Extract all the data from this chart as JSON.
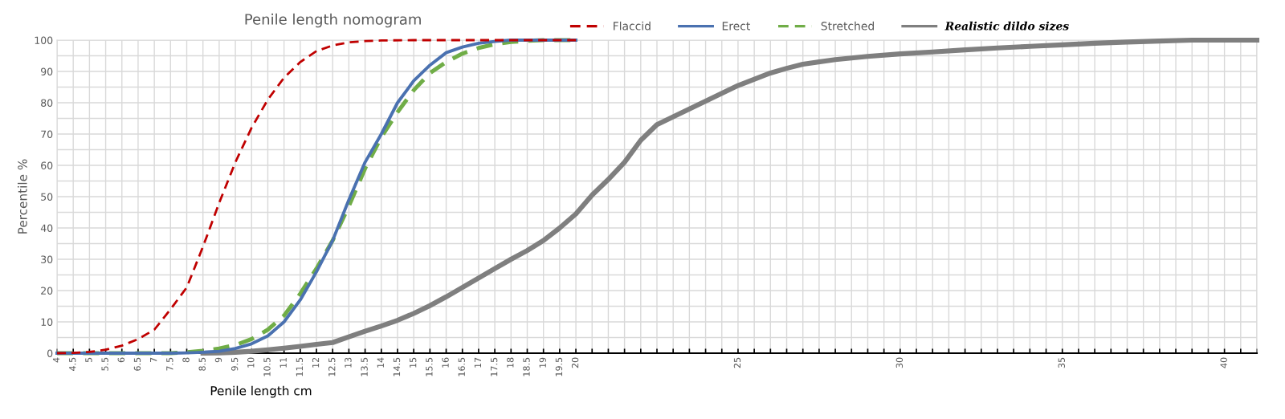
{
  "chart_data": {
    "type": "line",
    "title": "Penile length nomogram",
    "xlabel": "Penile length cm",
    "ylabel": "Percentile %",
    "xlim": [
      4,
      41
    ],
    "ylim": [
      0,
      100
    ],
    "xticks": [
      4,
      4.5,
      5,
      5.5,
      6,
      6.5,
      7,
      7.5,
      8,
      8.5,
      9,
      9.5,
      10,
      10.5,
      11,
      11.5,
      12,
      12.5,
      13,
      13.5,
      14,
      14.5,
      15,
      15.5,
      16,
      16.5,
      17,
      17.5,
      18,
      18.5,
      19,
      19.5,
      20,
      {
        "value": 20.5,
        "label": null
      },
      {
        "value": 21,
        "label": null
      },
      {
        "value": 21.5,
        "label": null
      },
      {
        "value": 22,
        "label": null
      },
      {
        "value": 22.5,
        "label": null
      },
      {
        "value": 23,
        "label": null
      },
      {
        "value": 23.5,
        "label": null
      },
      {
        "value": 24,
        "label": null
      },
      {
        "value": 24.5,
        "label": null
      },
      25,
      {
        "value": 25.5,
        "label": null
      },
      {
        "value": 26,
        "label": null
      },
      {
        "value": 26.5,
        "label": null
      },
      {
        "value": 27,
        "label": null
      },
      {
        "value": 27.5,
        "label": null
      },
      {
        "value": 28,
        "label": null
      },
      {
        "value": 28.5,
        "label": null
      },
      {
        "value": 29,
        "label": null
      },
      {
        "value": 29.5,
        "label": null
      },
      30,
      {
        "value": 30.5,
        "label": null
      },
      {
        "value": 31,
        "label": null
      },
      {
        "value": 31.5,
        "label": null
      },
      {
        "value": 32,
        "label": null
      },
      {
        "value": 32.5,
        "label": null
      },
      {
        "value": 33,
        "label": null
      },
      {
        "value": 33.5,
        "label": null
      },
      {
        "value": 34,
        "label": null
      },
      {
        "value": 34.5,
        "label": null
      },
      35,
      {
        "value": 35.5,
        "label": null
      },
      {
        "value": 36,
        "label": null
      },
      {
        "value": 36.5,
        "label": null
      },
      {
        "value": 37,
        "label": null
      },
      {
        "value": 37.5,
        "label": null
      },
      {
        "value": 38,
        "label": null
      },
      {
        "value": 38.5,
        "label": null
      },
      {
        "value": 39,
        "label": null
      },
      {
        "value": 39.5,
        "label": null
      },
      40,
      {
        "value": 40.5,
        "label": null
      },
      {
        "value": 41,
        "label": null
      }
    ],
    "yticks": [
      0,
      {
        "value": 5,
        "label": null
      },
      10,
      {
        "value": 15,
        "label": null
      },
      20,
      {
        "value": 25,
        "label": null
      },
      30,
      {
        "value": 35,
        "label": null
      },
      40,
      {
        "value": 45,
        "label": null
      },
      50,
      {
        "value": 55,
        "label": null
      },
      60,
      {
        "value": 65,
        "label": null
      },
      70,
      {
        "value": 75,
        "label": null
      },
      80,
      {
        "value": 85,
        "label": null
      },
      90,
      {
        "value": 95,
        "label": null
      },
      100
    ],
    "grid": true,
    "legend": "top right",
    "marker": "none",
    "series": [
      {
        "name": "Flaccid",
        "color": "#c00000",
        "line_style": "dashed",
        "x": [
          4,
          4.5,
          5,
          5.5,
          6,
          6.5,
          7,
          7.5,
          8,
          8.5,
          9,
          9.5,
          10,
          10.5,
          11,
          11.5,
          12,
          12.5,
          13,
          13.5,
          14,
          15,
          20
        ],
        "values": [
          0,
          0.1,
          0.4,
          1.1,
          2.4,
          4.5,
          7.5,
          14,
          21,
          34,
          48,
          61,
          72,
          81,
          88,
          93,
          96.5,
          98.3,
          99.3,
          99.7,
          99.9,
          100,
          100
        ]
      },
      {
        "name": "Erect",
        "color": "#4a71b0",
        "line_style": "solid",
        "x": [
          4,
          7.5,
          8,
          8.5,
          9,
          9.5,
          10,
          10.5,
          11,
          11.5,
          12,
          12.5,
          13,
          13.5,
          14,
          14.5,
          15,
          15.5,
          16,
          16.5,
          17,
          17.5,
          18,
          20
        ],
        "values": [
          0,
          0,
          0.1,
          0.3,
          0.6,
          1.5,
          3,
          5.5,
          10,
          17,
          26,
          36,
          49,
          61,
          70,
          80,
          87,
          92,
          96,
          97.8,
          99,
          99.6,
          100,
          100
        ]
      },
      {
        "name": "Stretched",
        "color": "#70ad47",
        "line_style": "dashed",
        "x": [
          4,
          7.5,
          8,
          8.5,
          9,
          9.5,
          10,
          10.5,
          11,
          11.5,
          12,
          12.5,
          13,
          13.5,
          14,
          14.5,
          15,
          15.5,
          16,
          16.5,
          17,
          17.5,
          18,
          18.5,
          19,
          20
        ],
        "values": [
          0,
          0,
          0.3,
          0.8,
          1.5,
          2.6,
          4.5,
          7.5,
          12,
          19,
          27,
          36,
          47,
          59,
          69,
          77,
          84,
          89.5,
          93,
          95.7,
          97.5,
          98.7,
          99.4,
          99.8,
          100,
          100
        ]
      },
      {
        "name": "Realistic dildo sizes",
        "color": "#7f7f7f",
        "line_style": "solid",
        "x": [
          8.5,
          9,
          9.5,
          10,
          10.5,
          11,
          11.5,
          12,
          12.5,
          13,
          13.5,
          14,
          14.5,
          15,
          15.5,
          16,
          16.5,
          17,
          17.5,
          18,
          18.5,
          19,
          19.5,
          20,
          20.5,
          21,
          21.5,
          22,
          22.5,
          23,
          24,
          25,
          26,
          26.5,
          27,
          28,
          29,
          30,
          31,
          32,
          33,
          34,
          35,
          36,
          37,
          38,
          39,
          41
        ],
        "values": [
          0,
          0.1,
          0.3,
          0.6,
          1.1,
          1.6,
          2.2,
          2.8,
          3.4,
          5.2,
          7,
          8.7,
          10.5,
          12.7,
          15.2,
          18,
          21,
          24,
          27,
          30,
          32.8,
          36,
          40,
          44.5,
          50.5,
          55.5,
          61,
          68,
          73,
          75.5,
          80.5,
          85.5,
          89.5,
          91,
          92.3,
          93.8,
          94.8,
          95.6,
          96.2,
          96.9,
          97.5,
          98,
          98.5,
          99,
          99.4,
          99.7,
          100,
          100
        ]
      }
    ]
  }
}
